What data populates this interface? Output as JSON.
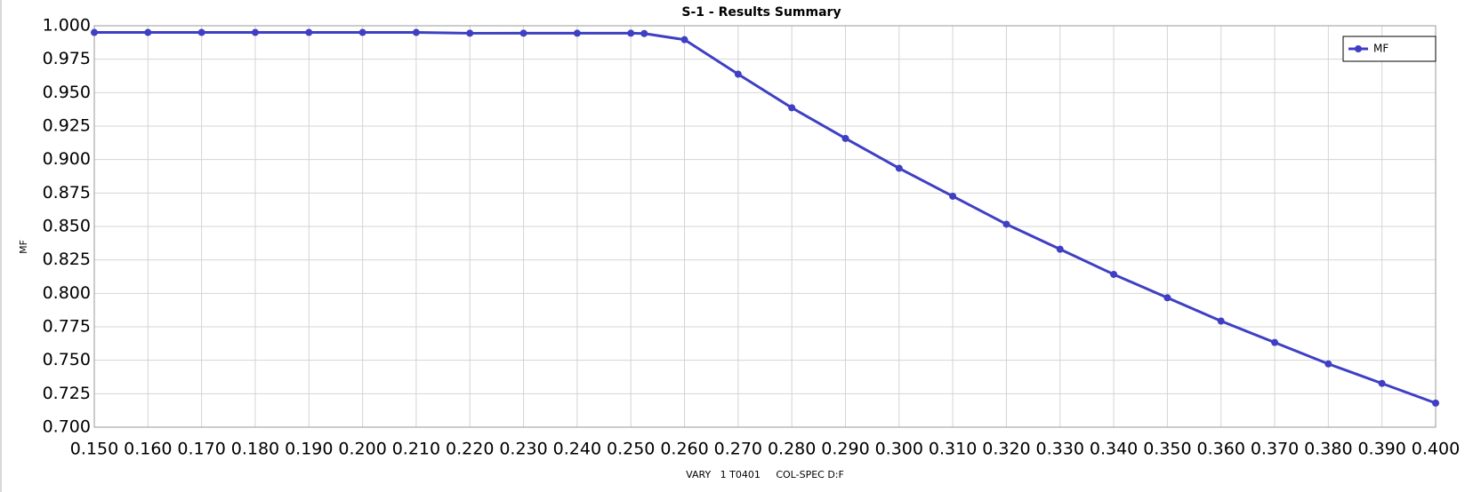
{
  "chart_data": {
    "type": "line",
    "title": "S-1 - Results Summary",
    "x_label": "VARY   1 T0401     COL-SPEC D:F",
    "y_label": "MF",
    "x": [
      0.15,
      0.16,
      0.17,
      0.18,
      0.19,
      0.2,
      0.21,
      0.22,
      0.23,
      0.24,
      0.25,
      0.2525,
      0.26,
      0.27,
      0.28,
      0.29,
      0.3,
      0.31,
      0.32,
      0.33,
      0.34,
      0.35,
      0.36,
      0.37,
      0.38,
      0.39,
      0.4
    ],
    "series": [
      {
        "name": "MF",
        "color": "#3f3fc4",
        "values": [
          0.995,
          0.995,
          0.995,
          0.995,
          0.995,
          0.995,
          0.995,
          0.9944,
          0.9944,
          0.9944,
          0.9944,
          0.9942,
          0.9896,
          0.9638,
          0.9387,
          0.9158,
          0.8935,
          0.8726,
          0.8517,
          0.833,
          0.8142,
          0.7967,
          0.7793,
          0.7633,
          0.7473,
          0.7327,
          0.718
        ]
      }
    ],
    "xlim": [
      0.15,
      0.4
    ],
    "ylim": [
      0.7,
      1.0
    ],
    "xticks": [
      {
        "value": 0.15,
        "label": "0.150"
      },
      {
        "value": 0.16,
        "label": "0.160"
      },
      {
        "value": 0.17,
        "label": "0.170"
      },
      {
        "value": 0.18,
        "label": "0.180"
      },
      {
        "value": 0.19,
        "label": "0.190"
      },
      {
        "value": 0.2,
        "label": "0.200"
      },
      {
        "value": 0.21,
        "label": "0.210"
      },
      {
        "value": 0.22,
        "label": "0.220"
      },
      {
        "value": 0.23,
        "label": "0.230"
      },
      {
        "value": 0.24,
        "label": "0.240"
      },
      {
        "value": 0.25,
        "label": "0.250"
      },
      {
        "value": 0.26,
        "label": "0.260"
      },
      {
        "value": 0.27,
        "label": "0.270"
      },
      {
        "value": 0.28,
        "label": "0.280"
      },
      {
        "value": 0.29,
        "label": "0.290"
      },
      {
        "value": 0.3,
        "label": "0.300"
      },
      {
        "value": 0.31,
        "label": "0.310"
      },
      {
        "value": 0.32,
        "label": "0.320"
      },
      {
        "value": 0.33,
        "label": "0.330"
      },
      {
        "value": 0.34,
        "label": "0.340"
      },
      {
        "value": 0.35,
        "label": "0.350"
      },
      {
        "value": 0.36,
        "label": "0.360"
      },
      {
        "value": 0.37,
        "label": "0.370"
      },
      {
        "value": 0.38,
        "label": "0.380"
      },
      {
        "value": 0.39,
        "label": "0.390"
      },
      {
        "value": 0.4,
        "label": "0.400"
      }
    ],
    "yticks": [
      {
        "value": 0.7,
        "label": "0.700"
      },
      {
        "value": 0.725,
        "label": "0.725"
      },
      {
        "value": 0.75,
        "label": "0.750"
      },
      {
        "value": 0.775,
        "label": "0.775"
      },
      {
        "value": 0.8,
        "label": "0.800"
      },
      {
        "value": 0.825,
        "label": "0.825"
      },
      {
        "value": 0.85,
        "label": "0.850"
      },
      {
        "value": 0.875,
        "label": "0.875"
      },
      {
        "value": 0.9,
        "label": "0.900"
      },
      {
        "value": 0.925,
        "label": "0.925"
      },
      {
        "value": 0.95,
        "label": "0.950"
      },
      {
        "value": 0.975,
        "label": "0.975"
      },
      {
        "value": 1.0,
        "label": "1.000"
      }
    ],
    "grid": true,
    "legend": "upper right"
  }
}
